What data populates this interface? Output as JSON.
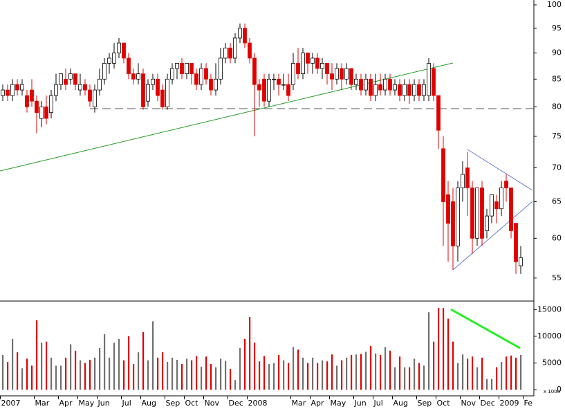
{
  "chart_data": [
    {
      "type": "candlestick",
      "log_scale": true,
      "up_color": "#ffffff",
      "down_color": "#e00000",
      "categories": [
        "2007",
        null,
        null,
        null,
        null,
        null,
        null,
        "Mar",
        null,
        null,
        null,
        null,
        "Apr",
        null,
        null,
        null,
        "May",
        null,
        null,
        null,
        "Jun",
        null,
        null,
        null,
        null,
        "Jul",
        null,
        null,
        null,
        "Aug",
        null,
        null,
        null,
        null,
        "Sep",
        null,
        null,
        null,
        "Oct",
        null,
        null,
        null,
        "Nov",
        null,
        null,
        null,
        null,
        "Dec",
        null,
        null,
        null,
        "2008",
        null,
        null,
        null,
        null,
        null,
        null,
        null,
        null,
        "Mar",
        null,
        null,
        null,
        "Apr",
        null,
        null,
        null,
        "May",
        null,
        null,
        null,
        null,
        "Jun",
        null,
        null,
        null,
        "Jul",
        null,
        null,
        null,
        "Aug",
        null,
        null,
        null,
        null,
        "Sep",
        null,
        null,
        null,
        "Oct",
        null,
        null,
        null,
        null,
        "Nov",
        null,
        null,
        null,
        "Dec",
        null,
        null,
        null,
        "2009",
        null,
        null,
        null,
        null,
        "Fe"
      ],
      "open": [
        82,
        83,
        82,
        84,
        83,
        82,
        83,
        81,
        78,
        80,
        79,
        82,
        84,
        85,
        85,
        86,
        83,
        84,
        83,
        80,
        83,
        85,
        88,
        88,
        90,
        92,
        89,
        86,
        85,
        86,
        81,
        84,
        85,
        83,
        80,
        85,
        87,
        88,
        86,
        88,
        86,
        84,
        87,
        85,
        83,
        85,
        89,
        91,
        89,
        93,
        95,
        92,
        89,
        84,
        85,
        81,
        85,
        85,
        84,
        84,
        84,
        88,
        86,
        90,
        88,
        89,
        87,
        88,
        86,
        85,
        87,
        85,
        87,
        84,
        85,
        83,
        85,
        82,
        84,
        83,
        85,
        83,
        84,
        82,
        84,
        82,
        84,
        82,
        82,
        87,
        82,
        73,
        66,
        65,
        59,
        67,
        70,
        67,
        60,
        67,
        61,
        63,
        65,
        64,
        68,
        67,
        62,
        56.5,
        null
      ],
      "high": [
        84,
        84,
        85,
        85,
        85,
        83,
        85,
        82,
        81,
        82,
        83,
        86,
        86,
        87,
        87,
        86,
        86,
        85,
        84,
        84,
        87,
        89,
        90,
        92,
        93,
        92,
        90,
        87,
        88,
        87,
        85,
        86,
        86,
        84,
        86,
        88,
        88,
        89,
        88,
        88,
        87,
        88,
        88,
        86,
        88,
        91,
        92,
        92,
        94,
        96,
        96,
        93,
        90,
        85,
        86,
        86,
        86,
        86,
        86,
        86,
        90,
        91,
        91,
        90,
        90,
        90,
        89,
        88,
        88,
        88,
        88,
        88,
        87,
        86,
        86,
        86,
        86,
        86,
        86,
        86,
        86,
        85,
        85,
        85,
        85,
        85,
        85,
        85,
        89,
        88,
        82,
        75,
        68,
        67,
        68,
        71,
        72.5,
        68,
        67,
        68,
        64,
        66,
        66,
        68,
        69,
        67,
        62,
        59,
        null
      ],
      "low": [
        81,
        81,
        81,
        82,
        82,
        79,
        80,
        75.5,
        76.5,
        77,
        78,
        81,
        83,
        83,
        84,
        83,
        82,
        82,
        80,
        79,
        82,
        84,
        86,
        87,
        89,
        88,
        85,
        84,
        84,
        79.5,
        80,
        83,
        81,
        79.5,
        79.5,
        84,
        85,
        85,
        85,
        84,
        83,
        83,
        84,
        82,
        82,
        84,
        88,
        88,
        88,
        92,
        91,
        88,
        75,
        80,
        80,
        80,
        83,
        82,
        83,
        81,
        83,
        85,
        85,
        86,
        86,
        86,
        85,
        84,
        83,
        84,
        83,
        84,
        83,
        83,
        82,
        82,
        81,
        81,
        82,
        82,
        82,
        82,
        81,
        81,
        80.5,
        81,
        81,
        81,
        81,
        81,
        73,
        59,
        57,
        56,
        57,
        65,
        63,
        58,
        59,
        59,
        60,
        62,
        62,
        63,
        65,
        60,
        55.5,
        55.5,
        null
      ],
      "close": [
        83,
        82,
        84,
        83,
        84,
        80,
        81,
        79,
        80,
        78,
        82,
        84,
        86,
        84,
        86,
        84,
        84,
        83,
        81,
        83,
        85,
        88,
        89,
        90,
        92,
        89,
        86,
        85,
        86,
        80,
        84,
        85,
        82,
        80,
        85,
        87,
        88,
        86,
        88,
        86,
        84,
        87,
        85,
        83,
        85,
        89,
        91,
        89,
        93,
        95,
        92,
        89,
        84,
        83,
        81,
        85,
        85,
        84,
        84,
        82,
        88,
        86,
        90,
        88,
        89,
        87,
        88,
        86,
        85,
        87,
        85,
        87,
        84,
        85,
        83,
        85,
        82,
        84,
        83,
        85,
        83,
        84,
        82,
        84,
        82,
        84,
        82,
        84,
        88,
        82,
        76,
        65,
        62,
        59,
        67,
        69,
        67,
        60,
        67,
        60,
        63,
        66,
        64,
        67,
        67,
        61,
        57,
        57.5,
        null
      ],
      "ylim": [
        52.3,
        101.07
      ],
      "yticks": [
        55,
        60,
        65,
        70,
        75,
        80,
        85,
        90,
        95,
        100
      ]
    },
    {
      "type": "bar",
      "up_color": "#707070",
      "down_color": "#e00000",
      "y_label": "x 1000",
      "values": [
        6500,
        5200,
        9500,
        7000,
        4000,
        5800,
        4500,
        13000,
        8800,
        9000,
        6000,
        4500,
        4500,
        6000,
        8500,
        7300,
        5500,
        5000,
        5600,
        6000,
        7800,
        10400,
        6000,
        8800,
        9500,
        5500,
        10000,
        4800,
        7000,
        10800,
        5500,
        12800,
        6000,
        7000,
        5200,
        6000,
        5600,
        4800,
        5800,
        5500,
        6300,
        4300,
        6200,
        4800,
        4200,
        5800,
        5400,
        3900,
        1800,
        7800,
        9500,
        13600,
        8800,
        5300,
        6300,
        4800,
        5000,
        6500,
        5500,
        5000,
        8000,
        7500,
        6000,
        5000,
        6000,
        5000,
        5500,
        5300,
        6600,
        4500,
        5500,
        6000,
        6500,
        6600,
        6700,
        7100,
        8200,
        6800,
        6500,
        8000,
        7300,
        4200,
        6200,
        4200,
        4200,
        5800,
        5000,
        4500,
        14500,
        9000,
        15300,
        15300,
        13300,
        9000,
        5000,
        6600,
        5800,
        6200,
        4200,
        6000,
        2000,
        2000,
        4200,
        5200,
        6200,
        6400,
        6000,
        6500,
        null
      ],
      "ylim": [
        -1150,
        16600
      ],
      "yticks": [
        0,
        5000,
        10000,
        15000
      ]
    }
  ]
}
